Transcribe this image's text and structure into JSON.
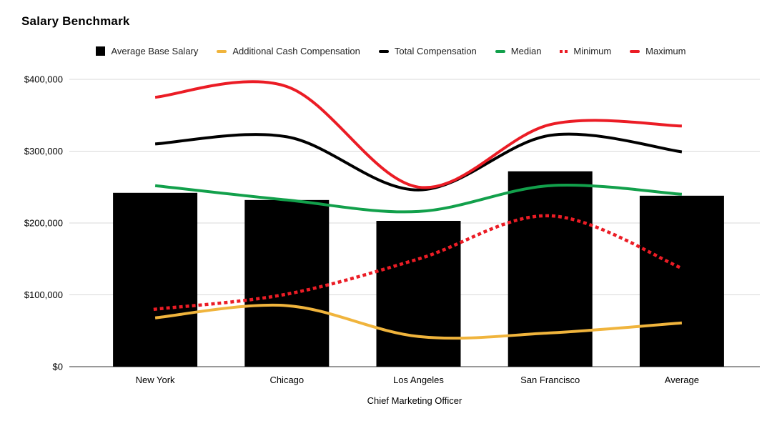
{
  "title": "Salary Benchmark",
  "x_axis_title": "Chief Marketing Officer",
  "colors": {
    "bar": "#000000",
    "additional_cash": "#F0B43C",
    "total_comp": "#000000",
    "median": "#12A04B",
    "minimum": "#EB1C25",
    "maximum": "#EB1C25",
    "gridline": "#D9D9D9",
    "axis_line": "#333333",
    "text": "#000000",
    "legend_text": "#1F1F1F"
  },
  "chart_data": {
    "type": "bar",
    "subtype": "combo-bar-and-smooth-lines",
    "title": "Salary Benchmark",
    "xlabel": "Chief Marketing Officer",
    "ylabel": "",
    "categories": [
      "New York",
      "Chicago",
      "Los Angeles",
      "San Francisco",
      "Average"
    ],
    "series": [
      {
        "name": "Average Base Salary",
        "type": "bar",
        "style": "solid",
        "color": "#000000",
        "values": [
          242000,
          232000,
          203000,
          272000,
          238000
        ]
      },
      {
        "name": "Additional Cash Compensation",
        "type": "line",
        "style": "solid",
        "color": "#F0B43C",
        "values": [
          68000,
          85000,
          42000,
          47000,
          61000
        ]
      },
      {
        "name": "Total Compensation",
        "type": "line",
        "style": "solid",
        "color": "#000000",
        "values": [
          310000,
          320000,
          246000,
          322000,
          299000
        ]
      },
      {
        "name": "Median",
        "type": "line",
        "style": "solid",
        "color": "#12A04B",
        "values": [
          252000,
          232000,
          216000,
          252000,
          240000
        ]
      },
      {
        "name": "Minimum",
        "type": "line",
        "style": "dotted",
        "color": "#EB1C25",
        "values": [
          80000,
          101000,
          150000,
          210000,
          137000
        ]
      },
      {
        "name": "Maximum",
        "type": "line",
        "style": "solid",
        "color": "#EB1C25",
        "values": [
          375000,
          390000,
          250000,
          337000,
          335000
        ]
      }
    ],
    "y_ticks": [
      {
        "value": 0,
        "label": "$0"
      },
      {
        "value": 100000,
        "label": "$100,000"
      },
      {
        "value": 200000,
        "label": "$200,000"
      },
      {
        "value": 300000,
        "label": "$300,000"
      },
      {
        "value": 400000,
        "label": "$400,000"
      }
    ],
    "ylim": [
      0,
      400000
    ],
    "grid": true,
    "legend_position": "top"
  }
}
